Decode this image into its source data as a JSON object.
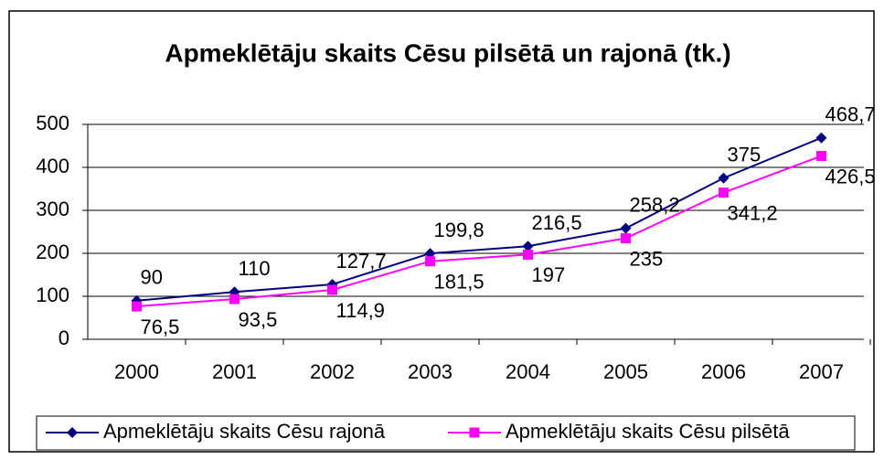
{
  "chart_data": {
    "type": "line",
    "title": "Apmeklētāju skaits Cēsu pilsētā un rajonā (tk.)",
    "categories": [
      "2000",
      "2001",
      "2002",
      "2003",
      "2004",
      "2005",
      "2006",
      "2007"
    ],
    "series": [
      {
        "name": "Apmeklētāju skaits Cēsu rajonā",
        "color": "#000080",
        "marker": "diamond",
        "values": [
          90,
          110,
          127.7,
          199.8,
          216.5,
          258.2,
          375,
          468.7
        ],
        "value_labels": [
          "90",
          "110",
          "127,7",
          "199,8",
          "216,5",
          "258,2",
          "375",
          "468,7"
        ]
      },
      {
        "name": "Apmeklētāju skaits Cēsu pilsētā",
        "color": "#ff00ff",
        "marker": "square",
        "values": [
          76.5,
          93.5,
          114.9,
          181.5,
          197,
          235,
          341.2,
          426.5
        ],
        "value_labels": [
          "76,5",
          "93,5",
          "114,9",
          "181,5",
          "197",
          "235",
          "341,2",
          "426,5"
        ]
      }
    ],
    "ylim": [
      0,
      500
    ],
    "yticks": [
      0,
      100,
      200,
      300,
      400,
      500
    ],
    "grid": true,
    "legend": "bottom"
  }
}
